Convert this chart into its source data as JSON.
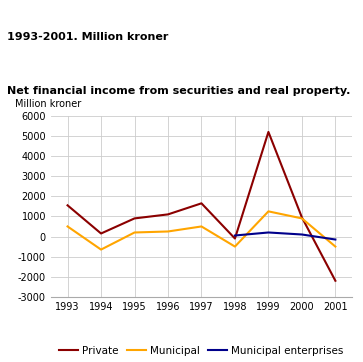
{
  "title_line1": "Net financial income from securities and real property.",
  "title_line2": "1993-2001. Million kroner",
  "ylabel": "Million kroner",
  "years": [
    1993,
    1994,
    1995,
    1996,
    1997,
    1998,
    1999,
    2000,
    2001
  ],
  "private": [
    1550,
    150,
    900,
    1100,
    1650,
    -100,
    5200,
    950,
    -2200
  ],
  "municipal": [
    500,
    -650,
    200,
    250,
    500,
    -500,
    1250,
    900,
    -500
  ],
  "municipal_enterprises": [
    null,
    null,
    null,
    null,
    null,
    50,
    200,
    100,
    -150
  ],
  "private_color": "#8B0000",
  "municipal_color": "#FFA500",
  "municipal_enterprises_color": "#00008B",
  "ylim": [
    -3000,
    6000
  ],
  "yticks": [
    -3000,
    -2000,
    -1000,
    0,
    1000,
    2000,
    3000,
    4000,
    5000,
    6000
  ],
  "bg_color": "#ffffff",
  "title_bar_color": "#4ab8c1",
  "grid_color": "#cccccc",
  "legend_labels": [
    "Private",
    "Municipal",
    "Municipal enterprises"
  ]
}
